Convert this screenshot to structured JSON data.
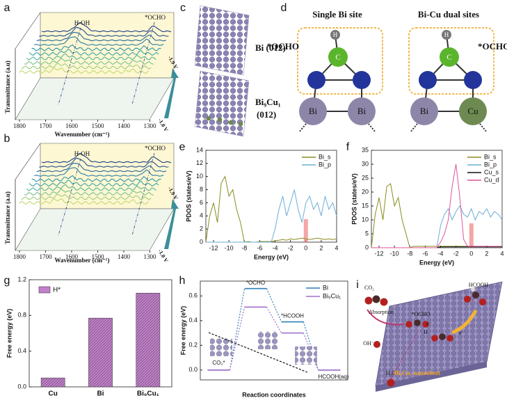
{
  "panels": {
    "a": {
      "label": "a",
      "annotations": [
        "H-OH",
        "*OCHO"
      ],
      "ylabel": "Transmittance (a.u)",
      "xlabel": "Wavenumber (cm⁻¹)",
      "xticks": [
        1800,
        1700,
        1600,
        1500,
        1400,
        1300
      ],
      "potentials": [
        "-1.9 V",
        "-1.0 V"
      ]
    },
    "b": {
      "label": "b",
      "annotations": [
        "H-OH",
        "*OCHO"
      ],
      "ylabel": "Transmittance (a.u)",
      "xlabel": "Wavenumber (cm⁻¹)",
      "xticks": [
        1800,
        1700,
        1600,
        1500,
        1400,
        1300
      ],
      "potentials": [
        "-1.9 V",
        "-1.0 V"
      ]
    },
    "c": {
      "label": "c",
      "structures": [
        "Bi (012)",
        "Bi₉Cu₁",
        "(012)"
      ]
    },
    "d": {
      "label": "d",
      "titles": [
        "Single Bi site",
        "Bi-Cu dual sites"
      ],
      "adsorbate": "*OCHO",
      "atoms_left": [
        "H",
        "C",
        "Bi",
        "Bi"
      ],
      "atoms_right": [
        "H",
        "C",
        "Bi",
        "Cu"
      ]
    },
    "i": {
      "label": "i",
      "co2": "CO₂",
      "product": "HCOOH",
      "absorption": "Absorption",
      "intermediate": "*OCHO",
      "hydroxide": "OH⁻",
      "water": "H₂O",
      "electron": "e⁻",
      "proton": "H",
      "sheet": "Bi₉Cu₁ nanosheet"
    }
  },
  "chart_data": [
    {
      "panel": "e",
      "type": "line",
      "xlabel": "Energy (eV)",
      "ylabel": "PDOS (states/eV)",
      "xlim": [
        -13,
        4
      ],
      "xticks": [
        -12,
        -10,
        -8,
        -6,
        -4,
        -2,
        0,
        2,
        4
      ],
      "ylim": [
        0,
        14
      ],
      "yticks": [
        0,
        2,
        4,
        6,
        8,
        10,
        12,
        14
      ],
      "highlight": 0,
      "x": [
        -13,
        -12.5,
        -12,
        -11.5,
        -11,
        -10.5,
        -10,
        -9.5,
        -9,
        -8.5,
        -8,
        -7.5,
        -7,
        -6.5,
        -6,
        -5.5,
        -5,
        -4.5,
        -4,
        -3.5,
        -3,
        -2.5,
        -2,
        -1.5,
        -1,
        -0.5,
        0,
        0.5,
        1,
        1.5,
        2,
        2.5,
        3,
        3.5,
        4
      ],
      "series": [
        {
          "name": "Bi_s",
          "color": "#8a8a1c",
          "values": [
            0,
            4,
            6,
            3,
            9,
            10,
            7,
            8,
            5,
            3,
            0,
            0.1,
            0,
            0,
            0.1,
            0.1,
            0.1,
            0.1,
            0.2,
            0.3,
            0.4,
            0.3,
            0.5,
            0.4,
            0.5,
            0.6,
            0.5,
            0.4,
            0.5,
            0.6,
            0.5,
            0.4,
            0.5,
            0.4,
            0.5
          ]
        },
        {
          "name": "Bi_p",
          "color": "#6aaed6",
          "values": [
            0,
            0,
            0,
            0,
            0,
            0,
            0,
            0,
            0,
            0,
            0,
            0,
            0,
            0,
            0,
            0,
            0,
            0,
            2,
            5,
            7,
            4,
            6,
            8,
            5,
            3,
            6,
            7,
            5,
            6,
            4,
            7,
            5,
            6,
            4
          ]
        }
      ]
    },
    {
      "panel": "f",
      "type": "line",
      "xlabel": "Energy (eV)",
      "ylabel": "PDOS (states/eV)",
      "xlim": [
        -13,
        4
      ],
      "xticks": [
        -12,
        -10,
        -8,
        -6,
        -4,
        -2,
        0,
        2,
        4
      ],
      "ylim": [
        0,
        35
      ],
      "yticks": [
        0,
        5,
        10,
        15,
        20,
        25,
        30,
        35
      ],
      "highlight": 0,
      "x": [
        -13,
        -12.5,
        -12,
        -11.5,
        -11,
        -10.5,
        -10,
        -9.5,
        -9,
        -8.5,
        -8,
        -7.5,
        -7,
        -6.5,
        -6,
        -5.5,
        -5,
        -4.5,
        -4,
        -3.5,
        -3,
        -2.5,
        -2,
        -1.5,
        -1,
        -0.5,
        0,
        0.5,
        1,
        1.5,
        2,
        2.5,
        3,
        3.5,
        4
      ],
      "series": [
        {
          "name": "Bi_s",
          "color": "#8a8a1c",
          "values": [
            0,
            12,
            18,
            10,
            22,
            23,
            15,
            18,
            10,
            5,
            0,
            0.5,
            0.5,
            0.5,
            0.5,
            0.5,
            0.5,
            0.5,
            0.5,
            0.5,
            0.5,
            0.5,
            0.5,
            0.5,
            0.5,
            0.5,
            0.5,
            0.5,
            0.5,
            0.5,
            0.5,
            0.5,
            0.5,
            0.5,
            0.5
          ]
        },
        {
          "name": "Bi_p",
          "color": "#6aaed6",
          "values": [
            0,
            0,
            0,
            0,
            0,
            0,
            0,
            0,
            0,
            0,
            0,
            0,
            0,
            0,
            0,
            0,
            0,
            0,
            8,
            12,
            14,
            10,
            13,
            15,
            12,
            11,
            14,
            10,
            13,
            12,
            14,
            11,
            13,
            12,
            10
          ]
        },
        {
          "name": "Cu_s",
          "color": "#111111",
          "values": [
            0,
            0,
            0,
            0,
            0,
            0,
            0,
            0,
            0,
            0,
            0,
            0,
            0,
            0,
            0,
            0,
            0,
            0,
            0.3,
            0.3,
            0.3,
            0.3,
            0.3,
            0.3,
            0.3,
            0.3,
            0.3,
            0.3,
            0.3,
            0.3,
            0.3,
            0.3,
            0.3,
            0.3,
            0.3
          ]
        },
        {
          "name": "Cu_d",
          "color": "#e0529a",
          "values": [
            0,
            0,
            0,
            0,
            0,
            0,
            0,
            0,
            0,
            0,
            0,
            0,
            0,
            0,
            0,
            0,
            0,
            0,
            2,
            5,
            10,
            22,
            30,
            18,
            3,
            0.5,
            0.5,
            0.5,
            0.5,
            0.5,
            0.5,
            0.5,
            0.5,
            0.5,
            0.5
          ]
        }
      ]
    },
    {
      "panel": "g",
      "type": "bar",
      "ylabel": "Free energy (eV)",
      "legend": "H*",
      "color": "#c27fcb",
      "categories": [
        "Cu",
        "Bi",
        "Bi₉Cu₁"
      ],
      "values": [
        0.1,
        0.77,
        1.05
      ],
      "ylim": [
        0,
        1.2
      ],
      "yticks": [
        {
          "value": 0,
          "label": "0.0"
        },
        {
          "value": 0.4,
          "label": "0.4"
        },
        {
          "value": 0.8,
          "label": "0.8"
        },
        {
          "value": 1.2,
          "label": "1.2"
        }
      ]
    },
    {
      "panel": "h",
      "type": "step",
      "xlabel": "Reaction coordinates",
      "ylabel": "Free energy (eV)",
      "categories": [
        "CO₂*",
        "*OCHO",
        "*HCOOH",
        "HCOOH(aq)"
      ],
      "ylim": [
        -0.08,
        0.72
      ],
      "yticks": [
        {
          "value": 0,
          "label": "0.0"
        },
        {
          "value": 0.2,
          "label": "0.2"
        },
        {
          "value": 0.4,
          "label": "0.4"
        },
        {
          "value": 0.6,
          "label": "0.6"
        }
      ],
      "series": [
        {
          "name": "Bi",
          "color": "#2c7fb8",
          "values": [
            0,
            0.66,
            0.39,
            0
          ]
        },
        {
          "name": "Bi₉Cu₁",
          "color": "#a070cc",
          "values": [
            0,
            0.51,
            0.3,
            0
          ]
        }
      ]
    }
  ]
}
